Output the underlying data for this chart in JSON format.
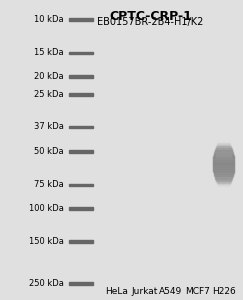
{
  "title": "CPTC-CRP-1",
  "subtitle": "EB0157BR-2B4-H1/K2",
  "lane_labels": [
    "HeLa",
    "Jurkat",
    "A549",
    "MCF7",
    "H226"
  ],
  "mw_labels": [
    "250 kDa",
    "150 kDa",
    "100 kDa",
    "75 kDa",
    "50 kDa",
    "37 kDa",
    "25 kDa",
    "20 kDa",
    "15 kDa",
    "10 kDa"
  ],
  "mw_values": [
    250,
    150,
    100,
    75,
    50,
    37,
    25,
    20,
    15,
    10
  ],
  "background_color": "#e8e8e8",
  "gel_bg_color": "#d8d8d8",
  "title_fontsize": 9,
  "subtitle_fontsize": 7,
  "label_fontsize": 6.5,
  "mw_fontsize": 6
}
